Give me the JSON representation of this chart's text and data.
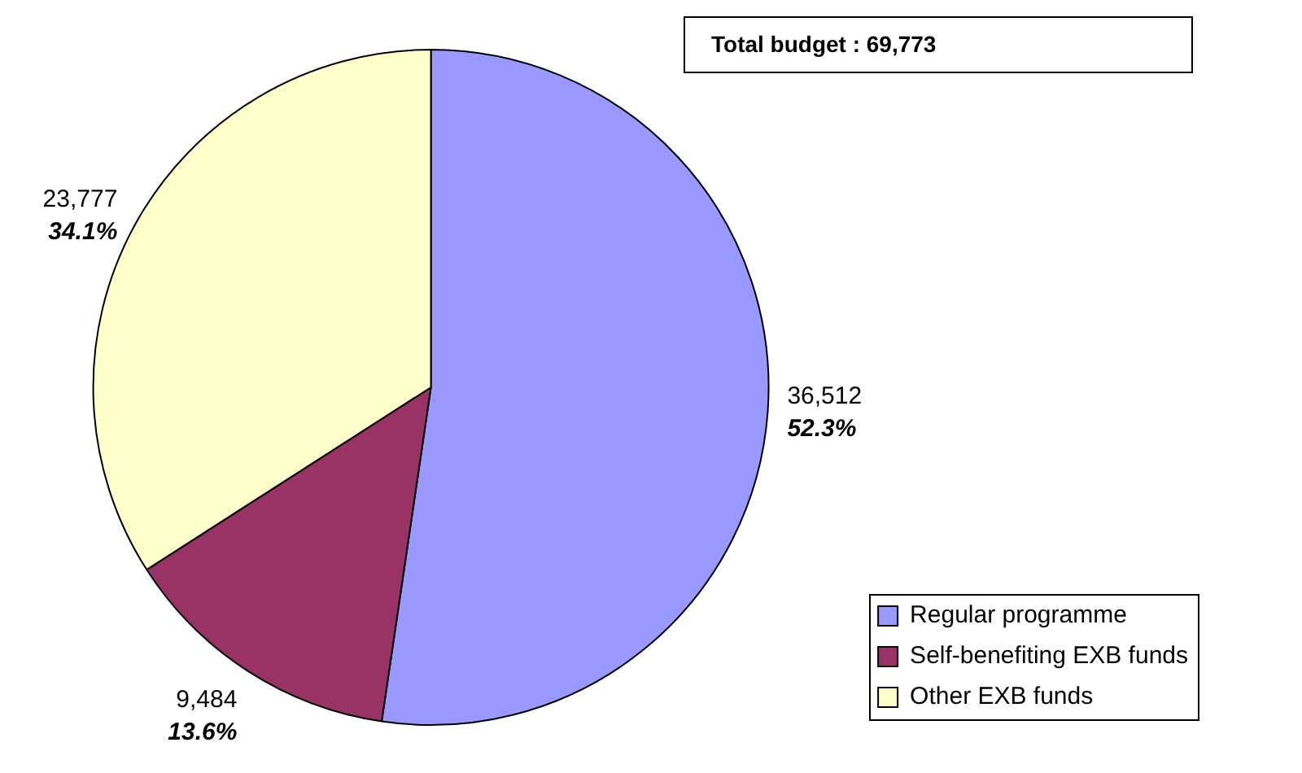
{
  "chart_data": {
    "type": "pie",
    "title": "Total budget : 69,773",
    "categories": [
      "Regular programme",
      "Self-benefiting EXB funds",
      "Other EXB funds"
    ],
    "values": [
      36512,
      9484,
      23777
    ],
    "colors": [
      "#9999ff",
      "#993366",
      "#ffffcc"
    ],
    "value_labels": [
      "36,512\n52.3%",
      "9,484\n13.6%",
      "23,777\n34.1%"
    ],
    "legend": "bottom right"
  }
}
